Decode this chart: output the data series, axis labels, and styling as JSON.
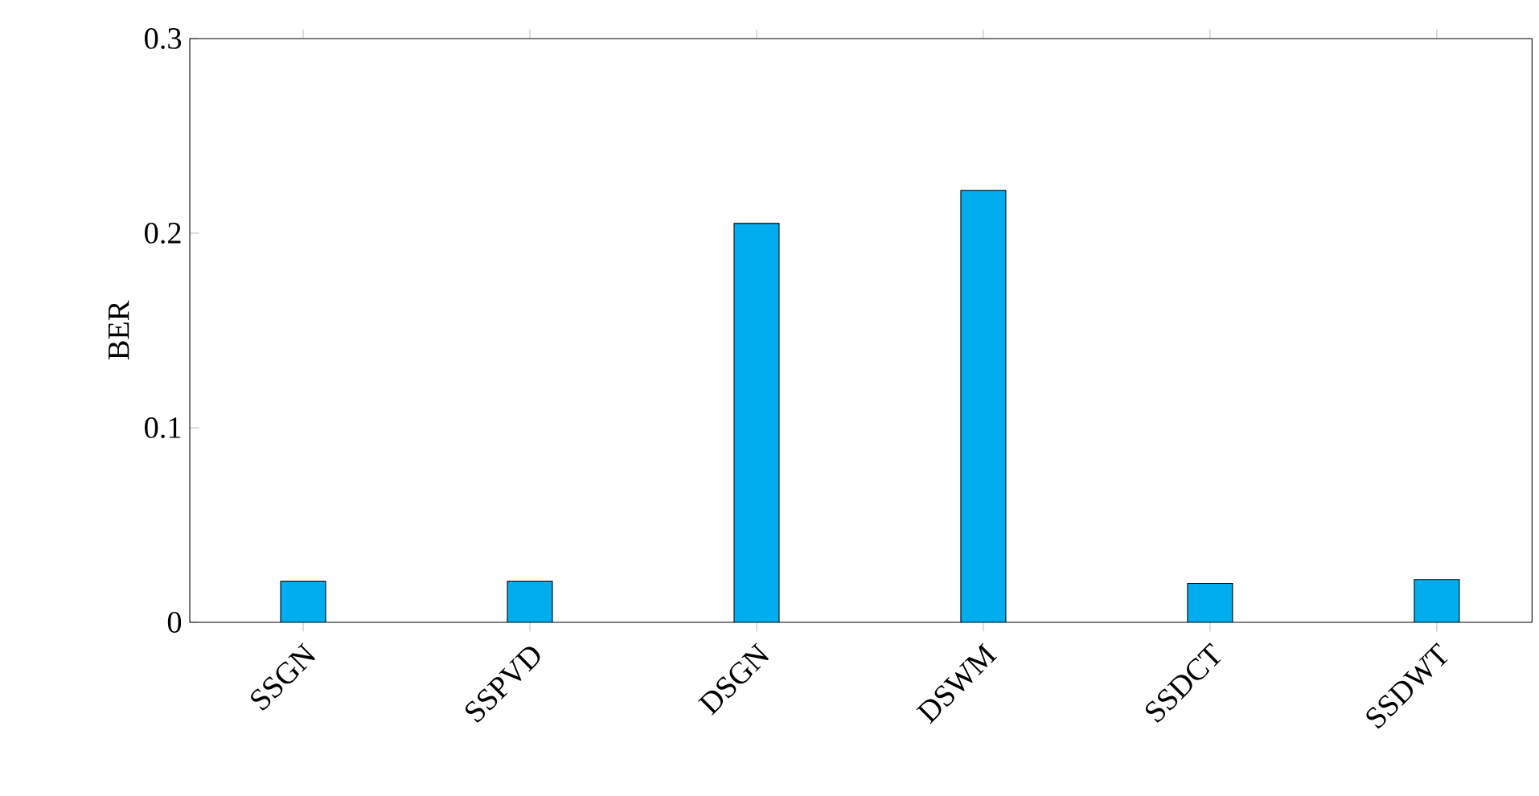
{
  "chart_data": {
    "type": "bar",
    "ylabel": "BER",
    "categories": [
      "SSGN",
      "SSPVD",
      "DSGN",
      "DSWM",
      "SSDCT",
      "SSDWT"
    ],
    "values": [
      0.021,
      0.021,
      0.205,
      0.222,
      0.02,
      0.022
    ],
    "color": "#00aeef",
    "ylim": [
      0,
      0.3
    ],
    "yticks": [
      0,
      0.1,
      0.2,
      0.3
    ]
  }
}
